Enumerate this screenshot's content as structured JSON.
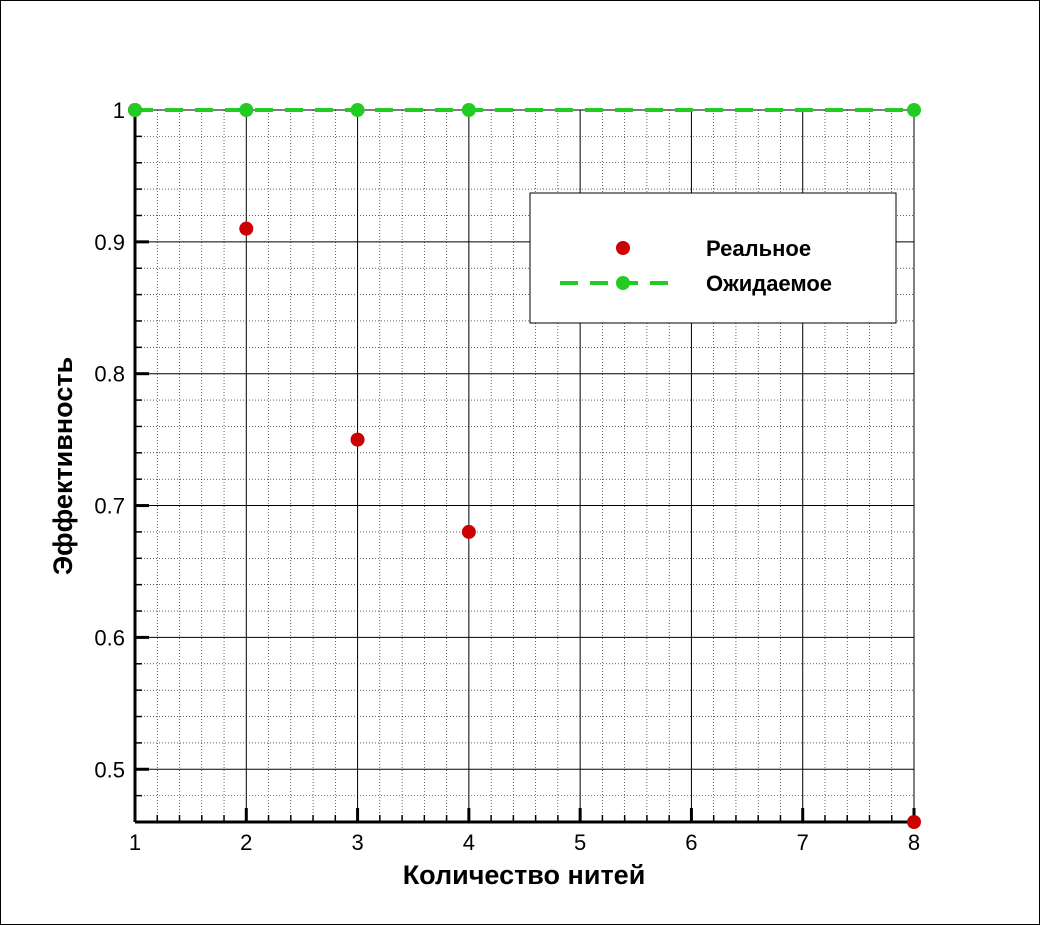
{
  "chart_data": {
    "type": "scatter",
    "title": "",
    "xlabel": "Количество нитей",
    "ylabel": "Эффективность",
    "xlim": [
      1,
      8
    ],
    "ylim": [
      0.46,
      1.0
    ],
    "x_ticks": [
      "1",
      "2",
      "3",
      "4",
      "5",
      "6",
      "7",
      "8"
    ],
    "y_ticks": [
      "0.5",
      "0.6",
      "0.7",
      "0.8",
      "0.9",
      "1"
    ],
    "grid": true,
    "legend_position": "top-right",
    "series": [
      {
        "name": "Реальное",
        "style": "markers",
        "color": "#cc0000",
        "x": [
          1,
          2,
          3,
          4,
          8
        ],
        "y": [
          1.0,
          0.91,
          0.75,
          0.68,
          0.46
        ]
      },
      {
        "name": "Ожидаемое",
        "style": "dashed-line-markers",
        "color": "#22cc22",
        "x": [
          1,
          2,
          3,
          4,
          8
        ],
        "y": [
          1.0,
          1.0,
          1.0,
          1.0,
          1.0
        ]
      }
    ]
  }
}
